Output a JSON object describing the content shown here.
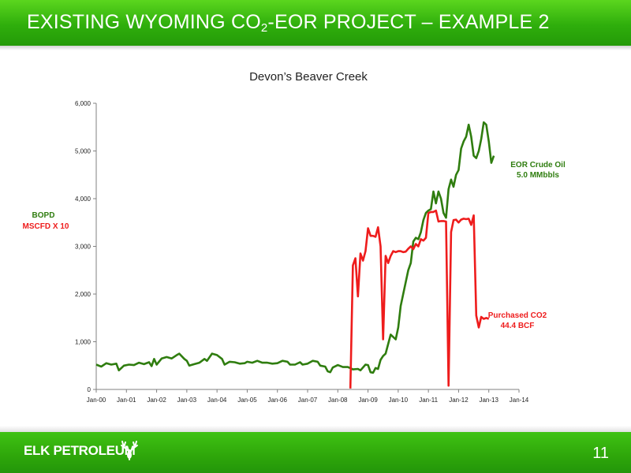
{
  "slide": {
    "title_pre": "EXISTING WYOMING CO",
    "title_sub": "2",
    "title_post": "-EOR PROJECT – EXAMPLE 2",
    "logo": "ELK PETROLEUM",
    "logo_icon": "elk-antler-icon",
    "page_number": "11"
  },
  "colors": {
    "header_green": "#2fae0c",
    "oil_series": "#2f7d0f",
    "co2_series": "#ee1c1c",
    "axis": "#808080"
  },
  "chart_data": {
    "type": "line",
    "title": "Devon’s Beaver Creek",
    "ylabel_line1": "BOPD",
    "ylabel_line2": "MSCFD X 10",
    "ylim": [
      0,
      6000
    ],
    "yticks": [
      "0",
      "1,000",
      "2,000",
      "3,000",
      "4,000",
      "5,000",
      "6,000"
    ],
    "ytick_values": [
      0,
      1000,
      2000,
      3000,
      4000,
      5000,
      6000
    ],
    "xlim": [
      "2000-01",
      "2014-01"
    ],
    "xticks": [
      "Jan-00",
      "Jan-01",
      "Jan-02",
      "Jan-03",
      "Jan-04",
      "Jan-05",
      "Jan-06",
      "Jan-07",
      "Jan-08",
      "Jan-09",
      "Jan-10",
      "Jan-11",
      "Jan-12",
      "Jan-13",
      "Jan-14"
    ],
    "grid": false,
    "series": [
      {
        "name": "EOR Crude Oil",
        "annotation": "5.0 MMbbls",
        "color": "#2f7d0f",
        "points": [
          [
            "2000-01",
            520
          ],
          [
            "2000-03",
            480
          ],
          [
            "2000-05",
            550
          ],
          [
            "2000-07",
            520
          ],
          [
            "2000-09",
            540
          ],
          [
            "2000-10",
            400
          ],
          [
            "2000-12",
            500
          ],
          [
            "2001-02",
            520
          ],
          [
            "2001-04",
            510
          ],
          [
            "2001-06",
            560
          ],
          [
            "2001-08",
            530
          ],
          [
            "2001-10",
            570
          ],
          [
            "2001-11",
            490
          ],
          [
            "2001-12",
            640
          ],
          [
            "2002-01",
            520
          ],
          [
            "2002-03",
            650
          ],
          [
            "2002-05",
            680
          ],
          [
            "2002-07",
            650
          ],
          [
            "2002-09",
            720
          ],
          [
            "2002-10",
            750
          ],
          [
            "2002-12",
            640
          ],
          [
            "2003-01",
            600
          ],
          [
            "2003-02",
            500
          ],
          [
            "2003-04",
            530
          ],
          [
            "2003-06",
            560
          ],
          [
            "2003-08",
            640
          ],
          [
            "2003-09",
            600
          ],
          [
            "2003-11",
            750
          ],
          [
            "2004-01",
            720
          ],
          [
            "2004-03",
            640
          ],
          [
            "2004-04",
            520
          ],
          [
            "2004-06",
            580
          ],
          [
            "2004-08",
            570
          ],
          [
            "2004-10",
            540
          ],
          [
            "2004-12",
            550
          ],
          [
            "2005-01",
            580
          ],
          [
            "2005-03",
            560
          ],
          [
            "2005-05",
            600
          ],
          [
            "2005-07",
            560
          ],
          [
            "2005-09",
            560
          ],
          [
            "2005-11",
            540
          ],
          [
            "2006-01",
            550
          ],
          [
            "2006-03",
            600
          ],
          [
            "2006-05",
            580
          ],
          [
            "2006-06",
            520
          ],
          [
            "2006-08",
            520
          ],
          [
            "2006-10",
            570
          ],
          [
            "2006-11",
            520
          ],
          [
            "2007-01",
            540
          ],
          [
            "2007-03",
            600
          ],
          [
            "2007-05",
            580
          ],
          [
            "2007-06",
            500
          ],
          [
            "2007-08",
            480
          ],
          [
            "2007-09",
            380
          ],
          [
            "2007-10",
            360
          ],
          [
            "2007-11",
            460
          ],
          [
            "2008-01",
            510
          ],
          [
            "2008-03",
            470
          ],
          [
            "2008-05",
            470
          ],
          [
            "2008-07",
            420
          ],
          [
            "2008-09",
            430
          ],
          [
            "2008-10",
            400
          ],
          [
            "2008-12",
            520
          ],
          [
            "2009-01",
            510
          ],
          [
            "2009-02",
            360
          ],
          [
            "2009-03",
            350
          ],
          [
            "2009-04",
            450
          ],
          [
            "2009-05",
            430
          ],
          [
            "2009-06",
            620
          ],
          [
            "2009-07",
            700
          ],
          [
            "2009-08",
            750
          ],
          [
            "2009-09",
            950
          ],
          [
            "2009-10",
            1150
          ],
          [
            "2009-11",
            1100
          ],
          [
            "2009-12",
            1050
          ],
          [
            "2010-01",
            1300
          ],
          [
            "2010-02",
            1750
          ],
          [
            "2010-03",
            2000
          ],
          [
            "2010-04",
            2250
          ],
          [
            "2010-05",
            2500
          ],
          [
            "2010-06",
            2650
          ],
          [
            "2010-07",
            3100
          ],
          [
            "2010-08",
            3180
          ],
          [
            "2010-09",
            3150
          ],
          [
            "2010-10",
            3300
          ],
          [
            "2010-11",
            3550
          ],
          [
            "2010-12",
            3700
          ],
          [
            "2011-01",
            3750
          ],
          [
            "2011-02",
            3780
          ],
          [
            "2011-03",
            4150
          ],
          [
            "2011-04",
            3900
          ],
          [
            "2011-05",
            4150
          ],
          [
            "2011-06",
            4000
          ],
          [
            "2011-07",
            3700
          ],
          [
            "2011-08",
            3600
          ],
          [
            "2011-09",
            4200
          ],
          [
            "2011-10",
            4400
          ],
          [
            "2011-11",
            4250
          ],
          [
            "2011-12",
            4500
          ],
          [
            "2012-01",
            4600
          ],
          [
            "2012-02",
            5050
          ],
          [
            "2012-03",
            5200
          ],
          [
            "2012-04",
            5300
          ],
          [
            "2012-05",
            5550
          ],
          [
            "2012-06",
            5300
          ],
          [
            "2012-07",
            4900
          ],
          [
            "2012-08",
            4850
          ],
          [
            "2012-09",
            5000
          ],
          [
            "2012-10",
            5250
          ],
          [
            "2012-11",
            5600
          ],
          [
            "2012-12",
            5550
          ],
          [
            "2013-01",
            5200
          ],
          [
            "2013-02",
            4750
          ],
          [
            "2013-03",
            4900
          ]
        ]
      },
      {
        "name": "Purchased CO2",
        "annotation": "44.4 BCF",
        "color": "#ee1c1c",
        "points": [
          [
            "2008-06",
            20
          ],
          [
            "2008-07",
            2600
          ],
          [
            "2008-08",
            2750
          ],
          [
            "2008-09",
            1950
          ],
          [
            "2008-10",
            2850
          ],
          [
            "2008-11",
            2700
          ],
          [
            "2008-12",
            2900
          ],
          [
            "2009-01",
            3380
          ],
          [
            "2009-02",
            3220
          ],
          [
            "2009-03",
            3220
          ],
          [
            "2009-04",
            3200
          ],
          [
            "2009-05",
            3400
          ],
          [
            "2009-06",
            3000
          ],
          [
            "2009-07",
            1050
          ],
          [
            "2009-08",
            2800
          ],
          [
            "2009-09",
            2650
          ],
          [
            "2009-10",
            2800
          ],
          [
            "2009-11",
            2900
          ],
          [
            "2009-12",
            2880
          ],
          [
            "2010-01",
            2900
          ],
          [
            "2010-02",
            2900
          ],
          [
            "2010-03",
            2880
          ],
          [
            "2010-04",
            2890
          ],
          [
            "2010-05",
            2950
          ],
          [
            "2010-06",
            3000
          ],
          [
            "2010-07",
            2940
          ],
          [
            "2010-08",
            3050
          ],
          [
            "2010-09",
            3000
          ],
          [
            "2010-10",
            3150
          ],
          [
            "2010-11",
            3120
          ],
          [
            "2010-12",
            3180
          ],
          [
            "2011-01",
            3700
          ],
          [
            "2011-02",
            3720
          ],
          [
            "2011-03",
            3720
          ],
          [
            "2011-04",
            3750
          ],
          [
            "2011-05",
            3520
          ],
          [
            "2011-06",
            3530
          ],
          [
            "2011-07",
            3530
          ],
          [
            "2011-08",
            3520
          ],
          [
            "2011-09",
            80
          ],
          [
            "2011-10",
            3300
          ],
          [
            "2011-11",
            3550
          ],
          [
            "2011-12",
            3560
          ],
          [
            "2012-01",
            3500
          ],
          [
            "2012-02",
            3560
          ],
          [
            "2012-03",
            3580
          ],
          [
            "2012-04",
            3570
          ],
          [
            "2012-05",
            3580
          ],
          [
            "2012-06",
            3450
          ],
          [
            "2012-07",
            3650
          ],
          [
            "2012-08",
            1550
          ],
          [
            "2012-09",
            1300
          ],
          [
            "2012-10",
            1520
          ],
          [
            "2012-11",
            1480
          ],
          [
            "2012-12",
            1500
          ],
          [
            "2013-01",
            1480
          ]
        ]
      }
    ]
  }
}
